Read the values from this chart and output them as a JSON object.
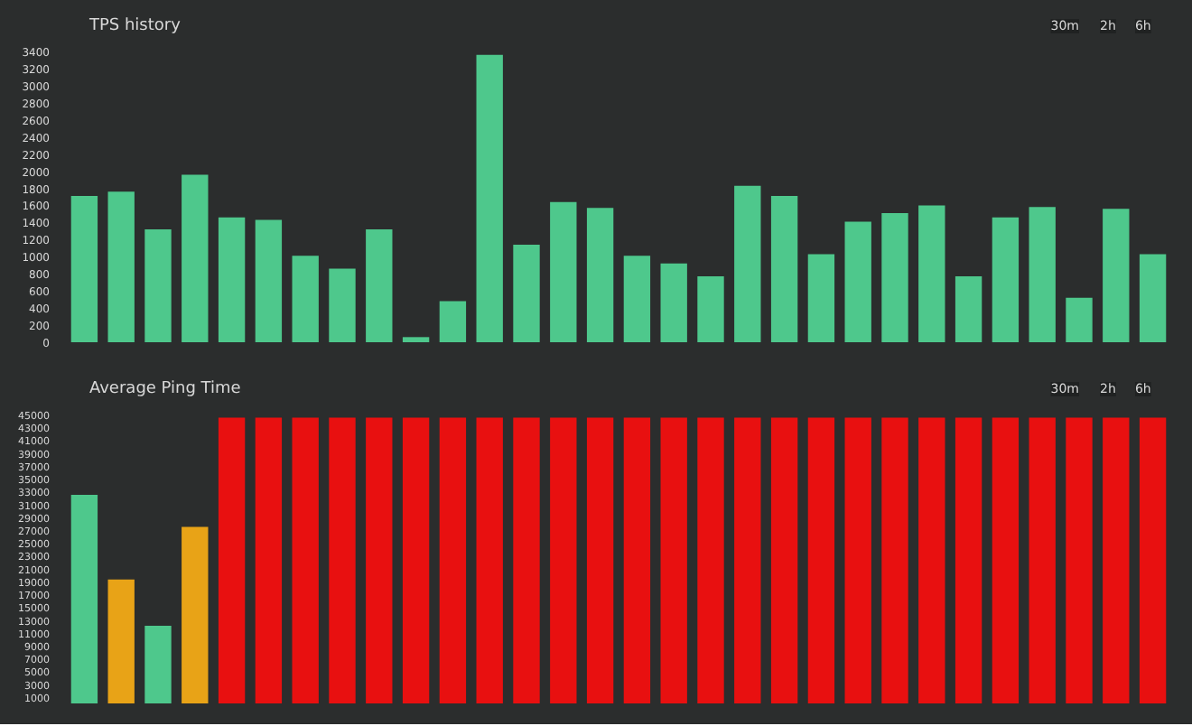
{
  "chart_data": [
    {
      "type": "bar",
      "title": "TPS history",
      "categories": [
        null,
        null,
        null,
        null,
        null,
        null,
        null,
        null,
        null,
        null,
        null,
        null,
        null,
        null,
        null,
        null,
        null,
        null,
        null,
        null,
        null,
        null,
        null,
        null,
        null,
        null,
        null,
        null,
        null,
        null
      ],
      "values": [
        1710,
        1760,
        1320,
        1960,
        1460,
        1430,
        1010,
        860,
        1320,
        60,
        480,
        3360,
        1140,
        1640,
        1570,
        1010,
        920,
        770,
        1830,
        1710,
        1030,
        1410,
        1510,
        1600,
        770,
        1460,
        1580,
        520,
        1560,
        1030
      ],
      "color": "#4ec88c",
      "ylim": [
        0,
        3400
      ],
      "yticks": [
        0,
        200,
        400,
        600,
        800,
        1000,
        1200,
        1400,
        1600,
        1800,
        2000,
        2200,
        2400,
        2600,
        2800,
        3000,
        3200,
        3400
      ],
      "grid": false,
      "tick_labels": "y",
      "annotations": [
        "30m",
        "2h",
        "6h"
      ]
    },
    {
      "type": "bar",
      "title": "Average Ping Time",
      "categories": [
        null,
        null,
        null,
        null,
        null,
        null,
        null,
        null,
        null,
        null,
        null,
        null,
        null,
        null,
        null,
        null,
        null,
        null,
        null,
        null,
        null,
        null,
        null,
        null,
        null,
        null,
        null,
        null,
        null,
        null
      ],
      "values": [
        32500,
        19300,
        12100,
        27500,
        44500,
        44500,
        44500,
        44500,
        44500,
        44500,
        44500,
        44500,
        44500,
        44500,
        44500,
        44500,
        44500,
        44500,
        44500,
        44500,
        44500,
        44500,
        44500,
        44500,
        44500,
        44500,
        44500,
        44500,
        44500,
        44500
      ],
      "colors": [
        "#4ec88c",
        "#e8a317",
        "#4ec88c",
        "#e8a317",
        "#e81010",
        "#e81010",
        "#e81010",
        "#e81010",
        "#e81010",
        "#e81010",
        "#e81010",
        "#e81010",
        "#e81010",
        "#e81010",
        "#e81010",
        "#e81010",
        "#e81010",
        "#e81010",
        "#e81010",
        "#e81010",
        "#e81010",
        "#e81010",
        "#e81010",
        "#e81010",
        "#e81010",
        "#e81010",
        "#e81010",
        "#e81010",
        "#e81010",
        "#e81010"
      ],
      "ylim": [
        0,
        45000
      ],
      "yticks": [
        1000,
        3000,
        5000,
        7000,
        9000,
        11000,
        13000,
        15000,
        17000,
        19000,
        21000,
        23000,
        25000,
        27000,
        29000,
        31000,
        33000,
        35000,
        37000,
        39000,
        41000,
        43000,
        45000
      ],
      "grid": false,
      "tick_labels": "y",
      "annotations": [
        "30m",
        "2h",
        "6h"
      ]
    }
  ]
}
